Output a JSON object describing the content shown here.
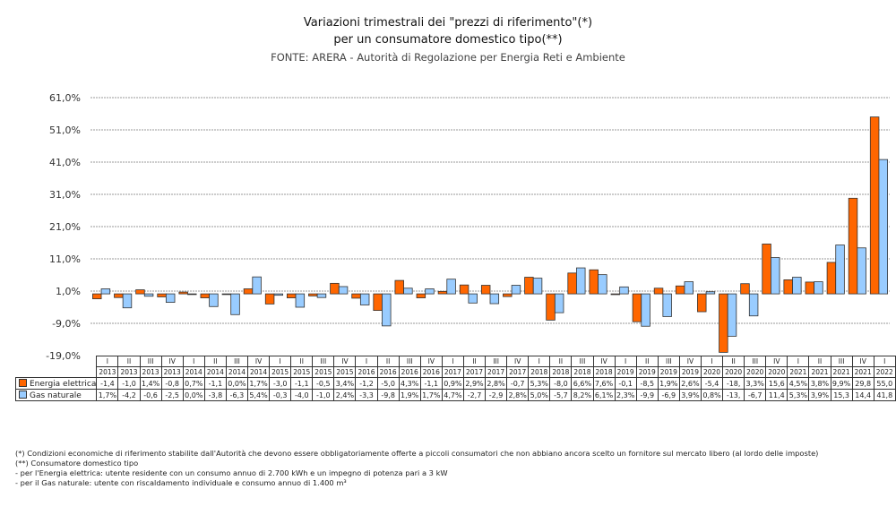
{
  "chart_data": {
    "type": "bar",
    "title": "Variazioni trimestrali dei \"prezzi di riferimento\"(*)",
    "subtitle": "per un consumatore domestico tipo(**)",
    "source": "FONTE: ARERA - Autorità di Regolazione per Energia Reti e Ambiente",
    "xlabel": "",
    "ylabel": "",
    "ylim": [
      -19,
      61
    ],
    "yticks": [
      "61,0%",
      "51,0%",
      "41,0%",
      "31,0%",
      "21,0%",
      "11,0%",
      "1,0%",
      "-9,0%",
      "-19,0%"
    ],
    "ytick_values": [
      61,
      51,
      41,
      31,
      21,
      11,
      1,
      -9,
      -19
    ],
    "grid": true,
    "legend": "table-left",
    "quarters": [
      "I",
      "II",
      "III",
      "IV",
      "I",
      "II",
      "III",
      "IV",
      "I",
      "II",
      "III",
      "IV",
      "I",
      "II",
      "III",
      "IV",
      "I",
      "II",
      "III",
      "IV",
      "I",
      "II",
      "III",
      "IV",
      "I",
      "II",
      "III",
      "IV",
      "I",
      "II",
      "III",
      "IV",
      "I",
      "II",
      "III",
      "IV",
      "I"
    ],
    "years": [
      "2013",
      "2013",
      "2013",
      "2013",
      "2014",
      "2014",
      "2014",
      "2014",
      "2015",
      "2015",
      "2015",
      "2015",
      "2016",
      "2016",
      "2016",
      "2016",
      "2017",
      "2017",
      "2017",
      "2017",
      "2018",
      "2018",
      "2018",
      "2018",
      "2019",
      "2019",
      "2019",
      "2019",
      "2020",
      "2020",
      "2020",
      "2020",
      "2021",
      "2021",
      "2021",
      "2021",
      "2022"
    ],
    "series": [
      {
        "name": "Energia elettrica",
        "color": "#ff6600",
        "values": [
          -1.4,
          -1.0,
          1.4,
          -0.8,
          0.7,
          -1.1,
          0.0,
          1.7,
          -3.0,
          -1.1,
          -0.5,
          3.4,
          -1.2,
          -5.0,
          4.3,
          -1.1,
          0.9,
          2.9,
          2.8,
          -0.7,
          5.3,
          -8.0,
          6.6,
          7.6,
          -0.1,
          -8.5,
          1.9,
          2.6,
          -5.4,
          -18.0,
          3.3,
          15.6,
          4.5,
          3.8,
          9.9,
          29.8,
          55.0
        ],
        "labels": [
          "-1,4",
          "-1,0",
          "1,4%",
          "-0,8",
          "0,7%",
          "-1,1",
          "0,0%",
          "1,7%",
          "-3,0",
          "-1,1",
          "-0,5",
          "3,4%",
          "-1,2",
          "-5,0",
          "4,3%",
          "-1,1",
          "0,9%",
          "2,9%",
          "2,8%",
          "-0,7",
          "5,3%",
          "-8,0",
          "6,6%",
          "7,6%",
          "-0,1",
          "-8,5",
          "1,9%",
          "2,6%",
          "-5,4",
          "-18,",
          "3,3%",
          "15,6",
          "4,5%",
          "3,8%",
          "9,9%",
          "29,8",
          "55,0"
        ]
      },
      {
        "name": "Gas naturale",
        "color": "#99ccff",
        "values": [
          1.7,
          -4.2,
          -0.6,
          -2.5,
          0.0,
          -3.8,
          -6.3,
          5.4,
          -0.3,
          -4.0,
          -1.0,
          2.4,
          -3.3,
          -9.8,
          1.9,
          1.7,
          4.7,
          -2.7,
          -2.9,
          2.8,
          5.0,
          -5.7,
          8.2,
          6.1,
          2.3,
          -9.9,
          -6.9,
          3.9,
          0.8,
          -13.0,
          -6.7,
          11.4,
          5.3,
          3.9,
          15.3,
          14.4,
          41.8
        ],
        "labels": [
          "1,7%",
          "-4,2",
          "-0,6",
          "-2,5",
          "0,0%",
          "-3,8",
          "-6,3",
          "5,4%",
          "-0,3",
          "-4,0",
          "-1,0",
          "2,4%",
          "-3,3",
          "-9,8",
          "1,9%",
          "1,7%",
          "4,7%",
          "-2,7",
          "-2,9",
          "2,8%",
          "5,0%",
          "-5,7",
          "8,2%",
          "6,1%",
          "2,3%",
          "-9,9",
          "-6,9",
          "3,9%",
          "0,8%",
          "-13,",
          "-6,7",
          "11,4",
          "5,3%",
          "3,9%",
          "15,3",
          "14,4",
          "41,8"
        ]
      }
    ]
  },
  "notes": [
    "(*) Condizioni economiche di riferimento stabilite dall'Autorità che devono essere obbligatoriamente offerte a piccoli consumatori che non abbiano ancora scelto un fornitore sul mercato libero (al lordo delle imposte)",
    "(**) Consumatore domestico tipo",
    "- per l'Energia elettrica: utente residente con un consumo annuo di 2.700 kWh e un impegno di potenza pari a 3 kW",
    "- per il Gas naturale: utente con riscaldamento individuale e consumo annuo di 1.400 m³"
  ]
}
